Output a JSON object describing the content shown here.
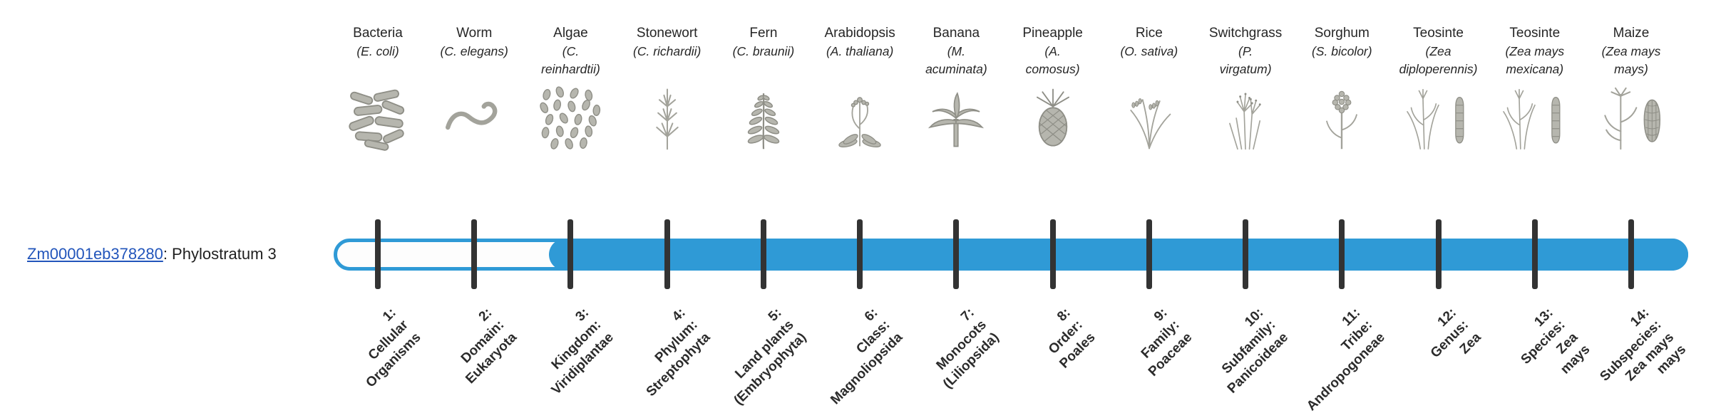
{
  "gene": {
    "id": "Zm00001eb378280",
    "label_suffix": ": Phylostratum 3",
    "phylostratum": 3
  },
  "colors": {
    "track": "#2f9ad6",
    "tick": "#333333",
    "link": "#2255bb"
  },
  "columns": [
    {
      "name": "Bacteria",
      "sci": "(E. coli)",
      "icon": "bacteria-icon",
      "stratum": "1:\nCellular\nOrganisms"
    },
    {
      "name": "Worm",
      "sci": "(C. elegans)",
      "icon": "worm-icon",
      "stratum": "2:\nDomain:\nEukaryota"
    },
    {
      "name": "Algae",
      "sci": "(C.\nreinhardtii)",
      "icon": "algae-icon",
      "stratum": "3:\nKingdom:\nViridiplantae"
    },
    {
      "name": "Stonewort",
      "sci": "(C. richardii)",
      "icon": "stonewort-icon",
      "stratum": "4:\nPhylum:\nStreptophyta"
    },
    {
      "name": "Fern",
      "sci": "(C. braunii)",
      "icon": "fern-icon",
      "stratum": "5:\nLand plants\n(Embryophyta)"
    },
    {
      "name": "Arabidopsis",
      "sci": "(A. thaliana)",
      "icon": "arabidopsis-icon",
      "stratum": "6:\nClass:\nMagnoliopsida"
    },
    {
      "name": "Banana",
      "sci": "(M.\nacuminata)",
      "icon": "banana-icon",
      "stratum": "7:\nMonocots\n(Liliopsida)"
    },
    {
      "name": "Pineapple",
      "sci": "(A.\ncomosus)",
      "icon": "pineapple-icon",
      "stratum": "8:\nOrder:\nPoales"
    },
    {
      "name": "Rice",
      "sci": "(O. sativa)",
      "icon": "rice-icon",
      "stratum": "9:\nFamily:\nPoaceae"
    },
    {
      "name": "Switchgrass",
      "sci": "(P.\nvirgatum)",
      "icon": "switchgrass-icon",
      "stratum": "10:\nSubfamily:\nPanicoideae"
    },
    {
      "name": "Sorghum",
      "sci": "(S. bicolor)",
      "icon": "sorghum-icon",
      "stratum": "11:\nTribe:\nAndropogoneae"
    },
    {
      "name": "Teosinte",
      "sci": "(Zea\ndiploperennis)",
      "icon": "teosinte-icon",
      "stratum": "12:\nGenus:\nZea"
    },
    {
      "name": "Teosinte",
      "sci": "(Zea mays\nmexicana)",
      "icon": "teosinte-icon",
      "stratum": "13:\nSpecies:\nZea\nmays"
    },
    {
      "name": "Maize",
      "sci": "(Zea mays\nmays)",
      "icon": "maize-icon",
      "stratum": "14:\nSubspecies:\nZea mays\nmays"
    }
  ]
}
